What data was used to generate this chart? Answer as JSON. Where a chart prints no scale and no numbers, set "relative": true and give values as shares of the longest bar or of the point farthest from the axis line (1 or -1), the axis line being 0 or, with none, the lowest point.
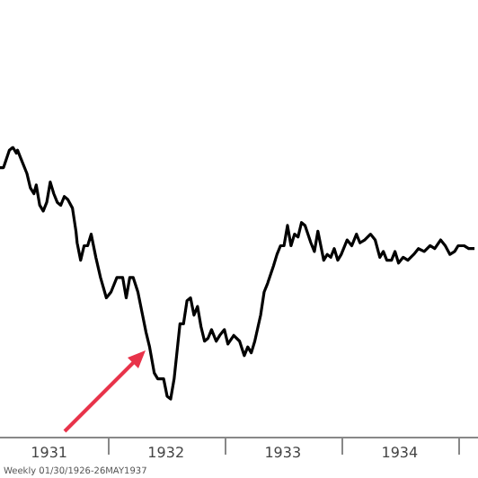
{
  "chart_data": {
    "type": "line",
    "relative": true,
    "color": "#000000",
    "x": [
      1931.08,
      1931.11,
      1931.16,
      1931.19,
      1931.22,
      1931.23,
      1931.26,
      1931.31,
      1931.34,
      1931.37,
      1931.39,
      1931.42,
      1931.45,
      1931.48,
      1931.51,
      1931.54,
      1931.57,
      1931.6,
      1931.63,
      1931.66,
      1931.7,
      1931.73,
      1931.74,
      1931.77,
      1931.8,
      1931.83,
      1931.86,
      1931.9,
      1931.94,
      1931.99,
      1932.03,
      1932.08,
      1932.13,
      1932.16,
      1932.19,
      1932.22,
      1932.26,
      1932.3,
      1932.33,
      1932.36,
      1932.4,
      1932.43,
      1932.48,
      1932.51,
      1932.54,
      1932.57,
      1932.62,
      1932.65,
      1932.68,
      1932.71,
      1932.74,
      1932.77,
      1932.8,
      1932.83,
      1932.86,
      1932.89,
      1932.93,
      1932.96,
      1933.0,
      1933.03,
      1933.08,
      1933.13,
      1933.17,
      1933.2,
      1933.23,
      1933.26,
      1933.31,
      1933.34,
      1933.37,
      1933.42,
      1933.45,
      1933.48,
      1933.51,
      1933.54,
      1933.57,
      1933.6,
      1933.63,
      1933.66,
      1933.69,
      1933.74,
      1933.77,
      1933.8,
      1933.85,
      1933.88,
      1933.91,
      1933.94,
      1933.97,
      1934.0,
      1934.05,
      1934.09,
      1934.13,
      1934.16,
      1934.2,
      1934.25,
      1934.29,
      1934.33,
      1934.36,
      1934.39,
      1934.43,
      1934.46,
      1934.49,
      1934.53,
      1934.57,
      1934.62,
      1934.66,
      1934.71,
      1934.76,
      1934.8,
      1934.85,
      1934.89,
      1934.93,
      1934.97,
      1935.0,
      1935.05,
      1935.09,
      1935.14
    ],
    "values": [
      0.93,
      0.93,
      0.99,
      1.0,
      0.98,
      0.99,
      0.96,
      0.91,
      0.86,
      0.84,
      0.87,
      0.8,
      0.78,
      0.81,
      0.88,
      0.84,
      0.81,
      0.8,
      0.83,
      0.82,
      0.79,
      0.71,
      0.67,
      0.61,
      0.66,
      0.66,
      0.7,
      0.62,
      0.55,
      0.48,
      0.5,
      0.55,
      0.55,
      0.48,
      0.55,
      0.55,
      0.5,
      0.42,
      0.36,
      0.31,
      0.22,
      0.2,
      0.2,
      0.14,
      0.13,
      0.2,
      0.39,
      0.39,
      0.47,
      0.48,
      0.42,
      0.45,
      0.38,
      0.33,
      0.34,
      0.37,
      0.33,
      0.35,
      0.37,
      0.32,
      0.35,
      0.33,
      0.28,
      0.31,
      0.29,
      0.33,
      0.42,
      0.5,
      0.53,
      0.59,
      0.63,
      0.66,
      0.66,
      0.73,
      0.66,
      0.7,
      0.69,
      0.74,
      0.73,
      0.67,
      0.64,
      0.71,
      0.61,
      0.63,
      0.62,
      0.65,
      0.61,
      0.63,
      0.68,
      0.66,
      0.7,
      0.67,
      0.68,
      0.7,
      0.68,
      0.62,
      0.64,
      0.61,
      0.61,
      0.64,
      0.6,
      0.62,
      0.61,
      0.63,
      0.65,
      0.64,
      0.66,
      0.65,
      0.68,
      0.66,
      0.63,
      0.64,
      0.66,
      0.66,
      0.65,
      0.65
    ],
    "xlim": [
      1931.08,
      1935.17
    ],
    "xticks": [
      {
        "value": 1931.5,
        "label": "1931"
      },
      {
        "value": 1932,
        "label": null
      },
      {
        "value": 1932.5,
        "label": "1932"
      },
      {
        "value": 1933,
        "label": null
      },
      {
        "value": 1933.5,
        "label": "1933"
      },
      {
        "value": 1934,
        "label": null
      },
      {
        "value": 1934.5,
        "label": "1934"
      },
      {
        "value": 1935,
        "label": null
      }
    ],
    "grid": false,
    "annotations": [
      "Weekly 01/30/1926-26MAY1937"
    ]
  }
}
